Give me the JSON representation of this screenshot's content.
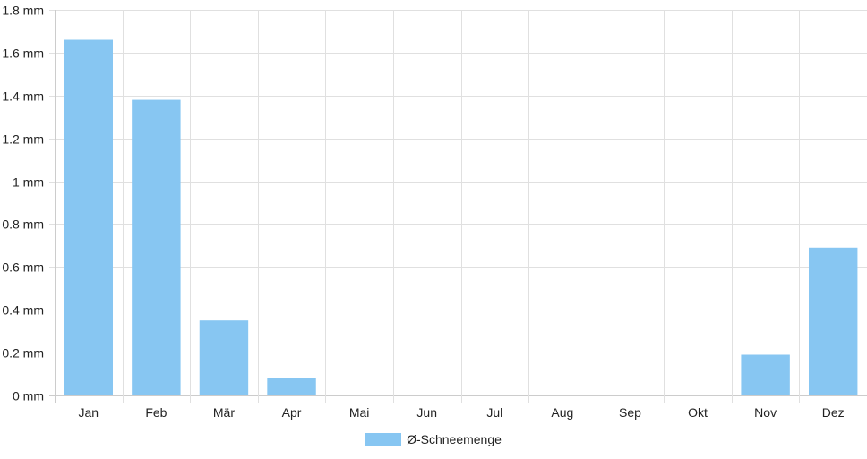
{
  "chart_data": {
    "type": "bar",
    "categories": [
      "Jan",
      "Feb",
      "Mär",
      "Apr",
      "Mai",
      "Jun",
      "Jul",
      "Aug",
      "Sep",
      "Okt",
      "Nov",
      "Dez"
    ],
    "series": [
      {
        "name": "Ø-Schneemenge",
        "values": [
          1.66,
          1.38,
          0.35,
          0.08,
          0,
          0,
          0,
          0,
          0,
          0,
          0.19,
          0.69
        ]
      }
    ],
    "ylim": [
      0,
      1.8
    ],
    "yticks": [
      0,
      0.2,
      0.4,
      0.6,
      0.8,
      1,
      1.2,
      1.4,
      1.6,
      1.8
    ],
    "ytick_labels": [
      "0 mm",
      "0.2 mm",
      "0.4 mm",
      "0.6 mm",
      "0.8 mm",
      "1 mm",
      "1.2 mm",
      "1.4 mm",
      "1.6 mm",
      "1.8 mm"
    ],
    "grid": true,
    "legend_position": "bottom",
    "colors": {
      "bar": "#87c6f2",
      "grid": "#e0e0e0",
      "axis": "#cccccc"
    }
  }
}
